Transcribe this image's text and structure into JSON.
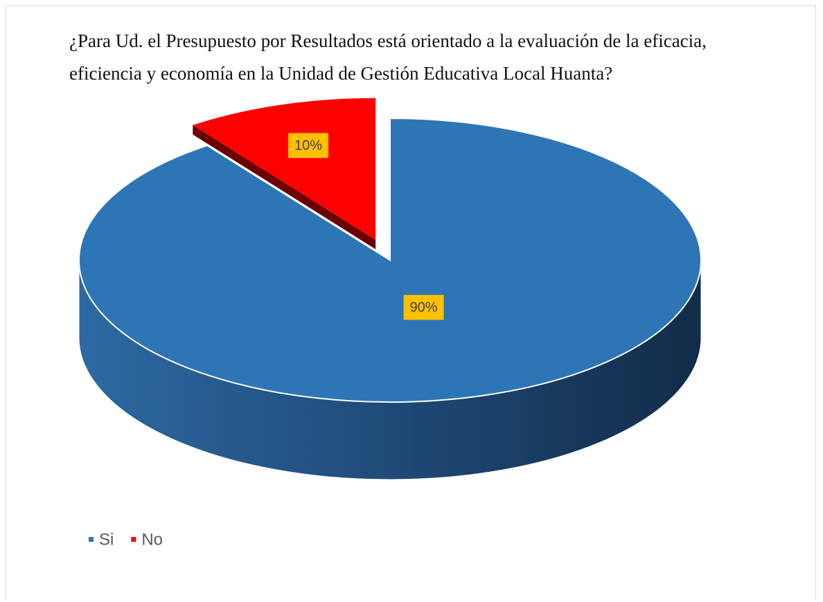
{
  "chart_data": {
    "type": "pie",
    "title": "¿Para Ud. el Presupuesto por Resultados está orientado a la evaluación de la eficacia, eficiencia y economía en la Unidad de Gestión Educativa Local Huanta?",
    "categories": [
      "Si",
      "No"
    ],
    "values": [
      90,
      10
    ],
    "value_labels": [
      "90%",
      "10%"
    ],
    "colors": [
      "#2e75b6",
      "#ff0000"
    ],
    "legend": "bottom"
  }
}
